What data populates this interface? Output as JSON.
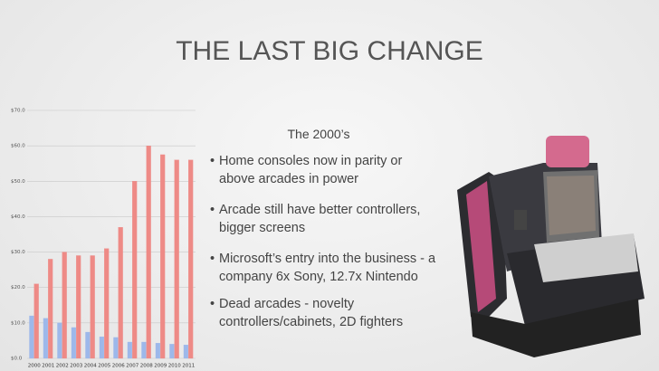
{
  "slide": {
    "title": "THE LAST BIG CHANGE",
    "subtitle": "The 2000’s",
    "bullets": [
      "Home consoles now in parity or above arcades in power",
      "Arcade still have better controllers, bigger screens",
      "Microsoft’s entry into the business - a company 6x Sony, 12.7x Nintendo",
      "Dead arcades - novelty controllers/cabinets, 2D fighters"
    ]
  },
  "chart_data": {
    "type": "bar",
    "categories": [
      "2000",
      "2001",
      "2002",
      "2003",
      "2004",
      "2005",
      "2006",
      "2007",
      "2008",
      "2009",
      "2010",
      "2011"
    ],
    "series": [
      {
        "color": "#9db8ea",
        "values": [
          12,
          11.3,
          10,
          8.7,
          7.4,
          6.1,
          5.9,
          4.6,
          4.6,
          4.3,
          4,
          3.8
        ]
      },
      {
        "color": "#ee8a86",
        "values": [
          21,
          28,
          30,
          29,
          29,
          31,
          37,
          50,
          60,
          57.5,
          56,
          56
        ]
      }
    ],
    "ylim": [
      0,
      70
    ],
    "yticks": [
      {
        "value": 0,
        "label": "$0.0"
      },
      {
        "value": 10,
        "label": "$10.0"
      },
      {
        "value": 20,
        "label": "$20.0"
      },
      {
        "value": 30,
        "label": "$30.0"
      },
      {
        "value": 40,
        "label": "$40.0"
      },
      {
        "value": 50,
        "label": "$50.0"
      },
      {
        "value": 60,
        "label": "$60.0"
      },
      {
        "value": 70,
        "label": "$70.0"
      }
    ],
    "grid": true
  }
}
